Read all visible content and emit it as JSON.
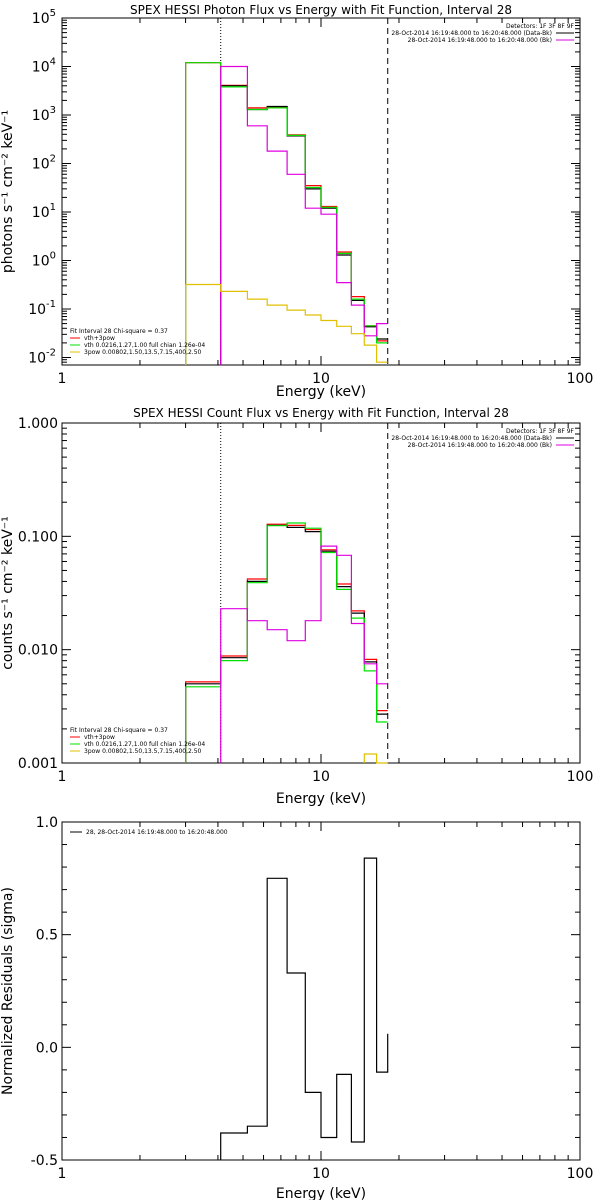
{
  "colors": {
    "black": "#000000",
    "red": "#ff0000",
    "green": "#00e000",
    "magenta": "#e000e0",
    "yellow": "#e0c000"
  },
  "chart_data": [
    {
      "type": "line",
      "title": "SPEX HESSI Photon Flux vs Energy with Fit Function, Interval 28",
      "xlabel": "Energy (keV)",
      "ylabel": "photons s⁻¹ cm⁻² keV⁻¹",
      "xscale": "log",
      "yscale": "log",
      "xlim": [
        1,
        100
      ],
      "ylim": [
        0.007,
        100000
      ],
      "xticks": [
        {
          "v": 1,
          "label": "1"
        },
        {
          "v": 10,
          "label": "10"
        },
        {
          "v": 100,
          "label": "100"
        }
      ],
      "yticks": [
        {
          "v": 0.01,
          "b": "10",
          "e": "-2"
        },
        {
          "v": 0.1,
          "b": "10",
          "e": "-1"
        },
        {
          "v": 1,
          "b": "10",
          "e": "0"
        },
        {
          "v": 10,
          "b": "10",
          "e": "1"
        },
        {
          "v": 100,
          "b": "10",
          "e": "2"
        },
        {
          "v": 1000,
          "b": "10",
          "e": "3"
        },
        {
          "v": 10000,
          "b": "10",
          "e": "4"
        },
        {
          "v": 100000,
          "b": "10",
          "e": "5"
        }
      ],
      "vlines": [
        {
          "x": 4.1,
          "style": "dotted"
        },
        {
          "x": 18.1,
          "style": "dashed"
        }
      ],
      "edges": [
        3.0,
        4.1,
        5.2,
        6.2,
        7.4,
        8.7,
        10.0,
        11.5,
        13.1,
        14.7,
        16.4,
        18.1
      ],
      "legend_right": [
        "Detectors: 1F 3F 8F 9F",
        "28-Oct-2014 16:19:48.000 to 16:20:48.000 (Data-Bk)",
        "28-Oct-2014 16:19:48.000 to 16:20:48.000 (Bk)"
      ],
      "legend_left": [
        "Fit Interval 28   Chi-square = 0.37",
        "vth+3pow",
        "vth 0.0216,1.27,1.00  full chian 1.26e-04",
        "3pow 0.00802,1.50,13.5,7.15,400,2.50"
      ],
      "series": [
        {
          "name": "vth+3pow",
          "color": "red",
          "values": [
            12000,
            4100,
            1400,
            1450,
            390,
            35,
            13,
            1.5,
            0.18,
            0.045,
            0.022
          ]
        },
        {
          "name": "data",
          "color": "black",
          "values": [
            null,
            4000,
            1300,
            1500,
            370,
            30,
            12,
            1.3,
            0.15,
            0.043,
            0.024
          ]
        },
        {
          "name": "vth",
          "color": "green",
          "values": [
            12000,
            3800,
            1300,
            1400,
            380,
            32,
            12.5,
            1.4,
            0.16,
            0.045,
            0.02
          ]
        },
        {
          "name": "background",
          "color": "magenta",
          "values": [
            null,
            10000,
            600,
            180,
            60,
            12,
            9,
            0.35,
            0.12,
            0.028,
            0.05
          ]
        },
        {
          "name": "3pow",
          "color": "yellow",
          "values": [
            0.32,
            0.23,
            0.16,
            0.12,
            0.095,
            0.075,
            0.058,
            0.044,
            0.031,
            0.018,
            0.008
          ]
        }
      ]
    },
    {
      "type": "line",
      "title": "SPEX HESSI Count Flux vs Energy with Fit Function, Interval 28",
      "xlabel": "Energy (keV)",
      "ylabel": "counts s⁻¹ cm⁻² keV⁻¹",
      "xscale": "log",
      "yscale": "log",
      "xlim": [
        1,
        100
      ],
      "ylim": [
        0.001,
        1.0
      ],
      "xticks": [
        {
          "v": 1,
          "label": "1"
        },
        {
          "v": 10,
          "label": "10"
        },
        {
          "v": 100,
          "label": "100"
        }
      ],
      "yticks": [
        {
          "v": 0.001,
          "label": "0.001"
        },
        {
          "v": 0.01,
          "label": "0.010"
        },
        {
          "v": 0.1,
          "label": "0.100"
        },
        {
          "v": 1.0,
          "label": "1.000"
        }
      ],
      "vlines": [
        {
          "x": 4.1,
          "style": "dotted"
        },
        {
          "x": 18.1,
          "style": "dashed"
        }
      ],
      "edges": [
        3.0,
        4.1,
        5.2,
        6.2,
        7.4,
        8.7,
        10.0,
        11.5,
        13.1,
        14.7,
        16.4,
        18.1
      ],
      "legend_right": [
        "Detectors: 1F 3F 8F 9F",
        "28-Oct-2014 16:19:48.000 to 16:20:48.000 (Data-Bk)",
        "28-Oct-2014 16:19:48.000 to 16:20:48.000 (Bk)"
      ],
      "legend_left": [
        "Fit Interval 28   Chi-square = 0.37",
        "vth+3pow",
        "vth 0.0216,1.27,1.00  full chian 1.26e-04",
        "3pow 0.00802,1.50,13.5,7.15,400,2.50"
      ],
      "series": [
        {
          "name": "vth+3pow",
          "color": "red",
          "values": [
            0.0052,
            0.0088,
            0.042,
            0.128,
            0.125,
            0.115,
            0.076,
            0.038,
            0.022,
            0.0082,
            0.0029
          ]
        },
        {
          "name": "data",
          "color": "black",
          "values": [
            0.005,
            0.0085,
            0.04,
            0.125,
            0.12,
            0.11,
            0.074,
            0.036,
            0.021,
            0.0078,
            0.0027
          ]
        },
        {
          "name": "vth",
          "color": "green",
          "values": [
            0.0047,
            0.008,
            0.039,
            0.124,
            0.131,
            0.118,
            0.072,
            0.034,
            0.019,
            0.0065,
            0.0023
          ]
        },
        {
          "name": "background",
          "color": "magenta",
          "values": [
            null,
            0.023,
            0.018,
            0.015,
            0.012,
            0.018,
            0.082,
            0.068,
            0.017,
            0.0075,
            0.005
          ]
        },
        {
          "name": "3pow",
          "color": "yellow",
          "values": [
            null,
            null,
            null,
            null,
            null,
            null,
            null,
            null,
            null,
            0.0012,
            0.001
          ]
        }
      ]
    },
    {
      "type": "line",
      "title": "",
      "xlabel": "Energy (keV)",
      "ylabel": "Normalized Residuals (sigma)",
      "xscale": "log",
      "yscale": "linear",
      "xlim": [
        1,
        100
      ],
      "ylim": [
        -0.5,
        1.0
      ],
      "xticks": [
        {
          "v": 1,
          "label": "1"
        },
        {
          "v": 10,
          "label": "10"
        },
        {
          "v": 100,
          "label": "100"
        }
      ],
      "yticks": [
        {
          "v": -0.5,
          "label": "-0.5"
        },
        {
          "v": 0.0,
          "label": "0.0"
        },
        {
          "v": 0.5,
          "label": "0.5"
        },
        {
          "v": 1.0,
          "label": "1.0"
        }
      ],
      "legend_left": [
        "28, 28-Oct-2014 16:19:48.000 to 16:20:48.000"
      ],
      "edges": [
        4.1,
        5.2,
        6.2,
        7.4,
        8.7,
        10.0,
        11.5,
        13.1,
        14.7,
        16.4,
        18.1
      ],
      "series": [
        {
          "name": "28, 28-Oct-2014 16:19:48.000 to 16:20:48.000",
          "color": "black",
          "values": [
            -0.38,
            -0.35,
            0.75,
            0.33,
            -0.2,
            -0.4,
            -0.12,
            -0.42,
            0.84,
            -0.11,
            0.06
          ]
        }
      ]
    }
  ]
}
